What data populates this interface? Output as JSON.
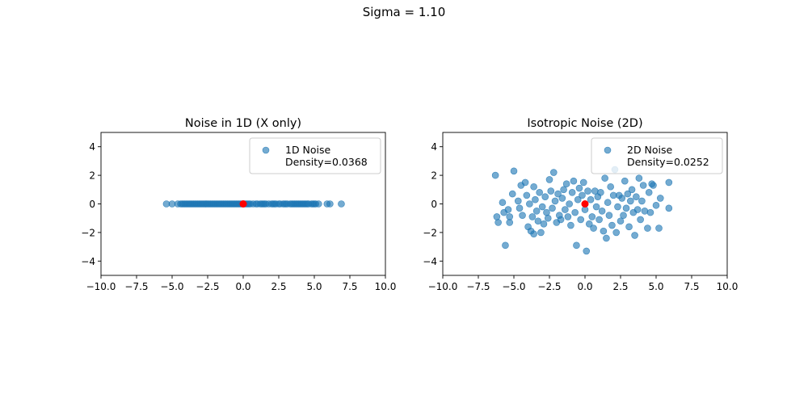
{
  "figure": {
    "suptitle": "Sigma = 1.10"
  },
  "chart_data": [
    {
      "type": "scatter",
      "title": "Noise in 1D (X only)",
      "xlabel": "",
      "ylabel": "",
      "xlim": [
        -10,
        10
      ],
      "ylim": [
        -5,
        5
      ],
      "xticks": [
        "−10.0",
        "−7.5",
        "−5.0",
        "−2.5",
        "0.0",
        "2.5",
        "5.0",
        "7.5",
        "10.0"
      ],
      "yticks": [
        "−4",
        "−2",
        "0",
        "2",
        "4"
      ],
      "grid": false,
      "legend": {
        "placement": "upper right",
        "entries": [
          "1D Noise",
          "Density=0.0368"
        ]
      },
      "series": [
        {
          "name": "1D Noise",
          "color": "#1f77b4",
          "points": [
            [
              -5.4,
              0
            ],
            [
              -5.0,
              0
            ],
            [
              -4.6,
              0
            ],
            [
              -4.4,
              0
            ],
            [
              -4.3,
              0
            ],
            [
              -4.2,
              0
            ],
            [
              -4.1,
              0
            ],
            [
              -4.0,
              0
            ],
            [
              -3.9,
              0
            ],
            [
              -3.8,
              0
            ],
            [
              -3.7,
              0
            ],
            [
              -3.6,
              0
            ],
            [
              -3.5,
              0
            ],
            [
              -3.4,
              0
            ],
            [
              -3.3,
              0
            ],
            [
              -3.2,
              0
            ],
            [
              -3.1,
              0
            ],
            [
              -3.0,
              0
            ],
            [
              -2.9,
              0
            ],
            [
              -2.8,
              0
            ],
            [
              -2.7,
              0
            ],
            [
              -2.6,
              0
            ],
            [
              -2.5,
              0
            ],
            [
              -2.4,
              0
            ],
            [
              -2.3,
              0
            ],
            [
              -2.2,
              0
            ],
            [
              -2.1,
              0
            ],
            [
              -2.0,
              0
            ],
            [
              -1.9,
              0
            ],
            [
              -1.8,
              0
            ],
            [
              -1.7,
              0
            ],
            [
              -1.6,
              0
            ],
            [
              -1.5,
              0
            ],
            [
              -1.4,
              0
            ],
            [
              -1.3,
              0
            ],
            [
              -1.2,
              0
            ],
            [
              -1.1,
              0
            ],
            [
              -1.0,
              0
            ],
            [
              -0.9,
              0
            ],
            [
              -0.8,
              0
            ],
            [
              -0.7,
              0
            ],
            [
              -0.6,
              0
            ],
            [
              -0.5,
              0
            ],
            [
              -0.4,
              0
            ],
            [
              -0.3,
              0
            ],
            [
              -0.2,
              0
            ],
            [
              -0.1,
              0
            ],
            [
              0.1,
              0
            ],
            [
              0.2,
              0
            ],
            [
              0.3,
              0
            ],
            [
              0.4,
              0
            ],
            [
              0.5,
              0
            ],
            [
              0.7,
              0
            ],
            [
              0.9,
              0
            ],
            [
              1.0,
              0
            ],
            [
              1.2,
              0
            ],
            [
              1.3,
              0
            ],
            [
              1.4,
              0
            ],
            [
              1.5,
              0
            ],
            [
              1.6,
              0
            ],
            [
              1.8,
              0
            ],
            [
              2.0,
              0
            ],
            [
              2.1,
              0
            ],
            [
              2.2,
              0
            ],
            [
              2.3,
              0
            ],
            [
              2.5,
              0
            ],
            [
              2.6,
              0
            ],
            [
              2.8,
              0
            ],
            [
              2.9,
              0
            ],
            [
              3.0,
              0
            ],
            [
              3.1,
              0
            ],
            [
              3.3,
              0
            ],
            [
              3.4,
              0
            ],
            [
              3.5,
              0
            ],
            [
              3.6,
              0
            ],
            [
              3.7,
              0
            ],
            [
              3.8,
              0
            ],
            [
              3.9,
              0
            ],
            [
              4.0,
              0
            ],
            [
              4.1,
              0
            ],
            [
              4.2,
              0
            ],
            [
              4.3,
              0
            ],
            [
              4.4,
              0
            ],
            [
              4.5,
              0
            ],
            [
              4.6,
              0
            ],
            [
              4.8,
              0
            ],
            [
              4.9,
              0
            ],
            [
              5.0,
              0
            ],
            [
              5.1,
              0
            ],
            [
              5.3,
              0
            ],
            [
              5.9,
              0
            ],
            [
              6.1,
              0
            ],
            [
              6.9,
              0
            ]
          ]
        },
        {
          "name": "",
          "color": "#ff0000",
          "points": [
            [
              0,
              0
            ]
          ]
        }
      ]
    },
    {
      "type": "scatter",
      "title": "Isotropic Noise (2D)",
      "xlabel": "",
      "ylabel": "",
      "xlim": [
        -10,
        10
      ],
      "ylim": [
        -5,
        5
      ],
      "xticks": [
        "−10.0",
        "−7.5",
        "−5.0",
        "−2.5",
        "0.0",
        "2.5",
        "5.0",
        "7.5",
        "10.0"
      ],
      "yticks": [
        "−4",
        "−2",
        "0",
        "2",
        "4"
      ],
      "grid": false,
      "legend": {
        "placement": "upper right",
        "entries": [
          "2D Noise",
          "Density=0.0252"
        ]
      },
      "series": [
        {
          "name": "2D Noise",
          "color": "#1f77b4",
          "points": [
            [
              -6.3,
              2.0
            ],
            [
              -6.2,
              -0.9
            ],
            [
              -6.1,
              -1.3
            ],
            [
              -5.8,
              0.1
            ],
            [
              -5.7,
              -0.6
            ],
            [
              -5.6,
              -2.9
            ],
            [
              -5.4,
              -0.4
            ],
            [
              -5.3,
              -0.9
            ],
            [
              -5.3,
              -1.3
            ],
            [
              -5.1,
              0.7
            ],
            [
              -5.0,
              2.3
            ],
            [
              -4.7,
              0.2
            ],
            [
              -4.6,
              -0.3
            ],
            [
              -4.5,
              1.3
            ],
            [
              -4.4,
              -0.8
            ],
            [
              -4.2,
              1.5
            ],
            [
              -4.1,
              0.6
            ],
            [
              -4.0,
              -1.6
            ],
            [
              -3.9,
              0.0
            ],
            [
              -3.8,
              -1.9
            ],
            [
              -3.7,
              -0.9
            ],
            [
              -3.6,
              1.2
            ],
            [
              -3.6,
              -2.1
            ],
            [
              -3.5,
              0.3
            ],
            [
              -3.4,
              -0.5
            ],
            [
              -3.3,
              -1.2
            ],
            [
              -3.2,
              0.8
            ],
            [
              -3.1,
              -2.0
            ],
            [
              -3.0,
              -0.2
            ],
            [
              -2.9,
              -1.4
            ],
            [
              -2.8,
              0.5
            ],
            [
              -2.7,
              -0.6
            ],
            [
              -2.6,
              -1.0
            ],
            [
              -2.5,
              1.7
            ],
            [
              -2.4,
              0.9
            ],
            [
              -2.3,
              -0.3
            ],
            [
              -2.2,
              2.2
            ],
            [
              -2.1,
              0.2
            ],
            [
              -2.0,
              -1.3
            ],
            [
              -1.9,
              0.7
            ],
            [
              -1.8,
              -0.8
            ],
            [
              -1.7,
              -1.1
            ],
            [
              -1.6,
              0.4
            ],
            [
              -1.5,
              1.0
            ],
            [
              -1.4,
              -0.4
            ],
            [
              -1.3,
              1.4
            ],
            [
              -1.2,
              -0.9
            ],
            [
              -1.1,
              0.0
            ],
            [
              -1.0,
              -1.5
            ],
            [
              -0.9,
              0.8
            ],
            [
              -0.8,
              1.6
            ],
            [
              -0.7,
              -0.6
            ],
            [
              -0.6,
              -2.9
            ],
            [
              -0.5,
              0.3
            ],
            [
              -0.4,
              1.1
            ],
            [
              -0.3,
              -1.1
            ],
            [
              -0.2,
              0.6
            ],
            [
              -0.1,
              1.5
            ],
            [
              0.0,
              -0.4
            ],
            [
              0.1,
              -3.3
            ],
            [
              0.2,
              0.9
            ],
            [
              0.3,
              -1.4
            ],
            [
              0.4,
              0.3
            ],
            [
              0.5,
              -0.9
            ],
            [
              0.6,
              -1.7
            ],
            [
              0.7,
              0.9
            ],
            [
              0.8,
              -0.2
            ],
            [
              0.9,
              0.5
            ],
            [
              1.0,
              -1.1
            ],
            [
              1.1,
              0.8
            ],
            [
              1.2,
              -0.5
            ],
            [
              1.3,
              -1.9
            ],
            [
              1.4,
              1.8
            ],
            [
              1.5,
              -2.4
            ],
            [
              1.6,
              0.1
            ],
            [
              1.7,
              -0.8
            ],
            [
              1.8,
              1.2
            ],
            [
              1.9,
              -1.5
            ],
            [
              2.0,
              0.6
            ],
            [
              2.1,
              2.4
            ],
            [
              2.2,
              -2.0
            ],
            [
              2.3,
              -0.2
            ],
            [
              2.4,
              0.6
            ],
            [
              2.5,
              -1.2
            ],
            [
              2.6,
              0.4
            ],
            [
              2.7,
              -0.8
            ],
            [
              2.8,
              1.6
            ],
            [
              2.9,
              -0.3
            ],
            [
              3.0,
              0.7
            ],
            [
              3.1,
              -1.6
            ],
            [
              3.2,
              0.2
            ],
            [
              3.3,
              1.0
            ],
            [
              3.4,
              -0.6
            ],
            [
              3.5,
              -2.2
            ],
            [
              3.6,
              0.5
            ],
            [
              3.7,
              -0.4
            ],
            [
              3.8,
              1.8
            ],
            [
              3.9,
              -1.1
            ],
            [
              4.0,
              0.2
            ],
            [
              4.1,
              1.3
            ],
            [
              4.2,
              -0.5
            ],
            [
              4.4,
              -1.7
            ],
            [
              4.5,
              0.8
            ],
            [
              4.6,
              -0.6
            ],
            [
              4.7,
              1.4
            ],
            [
              4.8,
              1.3
            ],
            [
              5.0,
              -0.1
            ],
            [
              5.2,
              -1.7
            ],
            [
              5.3,
              0.4
            ],
            [
              5.9,
              1.5
            ],
            [
              5.9,
              -0.3
            ]
          ]
        },
        {
          "name": "",
          "color": "#ff0000",
          "points": [
            [
              0,
              0
            ]
          ]
        }
      ]
    }
  ]
}
